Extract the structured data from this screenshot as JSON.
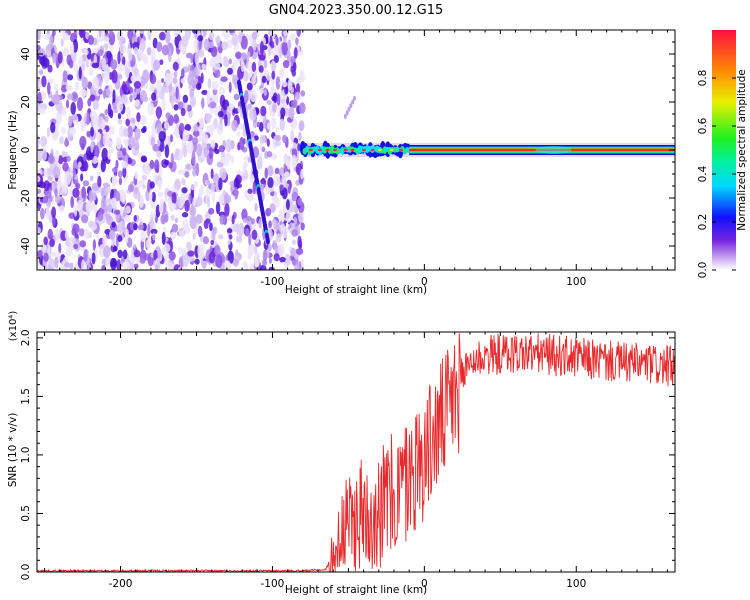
{
  "title": "GN04.2023.350.00.12.G15",
  "chart_data": [
    {
      "type": "heatmap",
      "xlabel": "Height of straight line (km)",
      "ylabel": "Frequency (Hz)",
      "xlim": [
        -255,
        165
      ],
      "ylim": [
        -50,
        50
      ],
      "x_ticks": [
        -200,
        -100,
        0,
        100
      ],
      "y_ticks": [
        -40,
        -20,
        0,
        20,
        40
      ],
      "grid": false,
      "colorbar": {
        "label": "Normalized spectral amplitude",
        "range": [
          0.0,
          1.0
        ],
        "ticks": [
          "0.0",
          "0.2",
          "0.4",
          "0.6",
          "0.8"
        ]
      },
      "features": {
        "noise_region_x": [
          -255,
          -80
        ],
        "signal_band_frequency_hz": 0,
        "signal_start_x": -80,
        "signal_strong_from_x": -10
      }
    },
    {
      "type": "line",
      "xlabel": "Height of straight line (km)",
      "ylabel": "SNR (10 * v/v)",
      "y_multiplier": "(x10⁴)",
      "xlim": [
        -255,
        165
      ],
      "ylim": [
        0,
        2.05
      ],
      "x_ticks": [
        -200,
        -100,
        0,
        100
      ],
      "y_ticks": [
        "0.0",
        "0.5",
        "1.0",
        "1.5",
        "2.0"
      ],
      "grid": false,
      "color": "#e8282a",
      "series": [
        {
          "x": [
            -255,
            -200,
            -150,
            -100,
            -80,
            -65,
            -60,
            -55,
            -50,
            -40,
            -30,
            -20,
            -10,
            0,
            10,
            20,
            30,
            40,
            60,
            80,
            100,
            120,
            140,
            165
          ],
          "values": [
            0.01,
            0.01,
            0.01,
            0.01,
            0.01,
            0.02,
            0.15,
            0.35,
            0.45,
            0.55,
            0.62,
            0.7,
            0.85,
            1.05,
            1.3,
            1.55,
            1.8,
            1.85,
            1.87,
            1.86,
            1.83,
            1.8,
            1.78,
            1.75
          ]
        }
      ]
    }
  ]
}
